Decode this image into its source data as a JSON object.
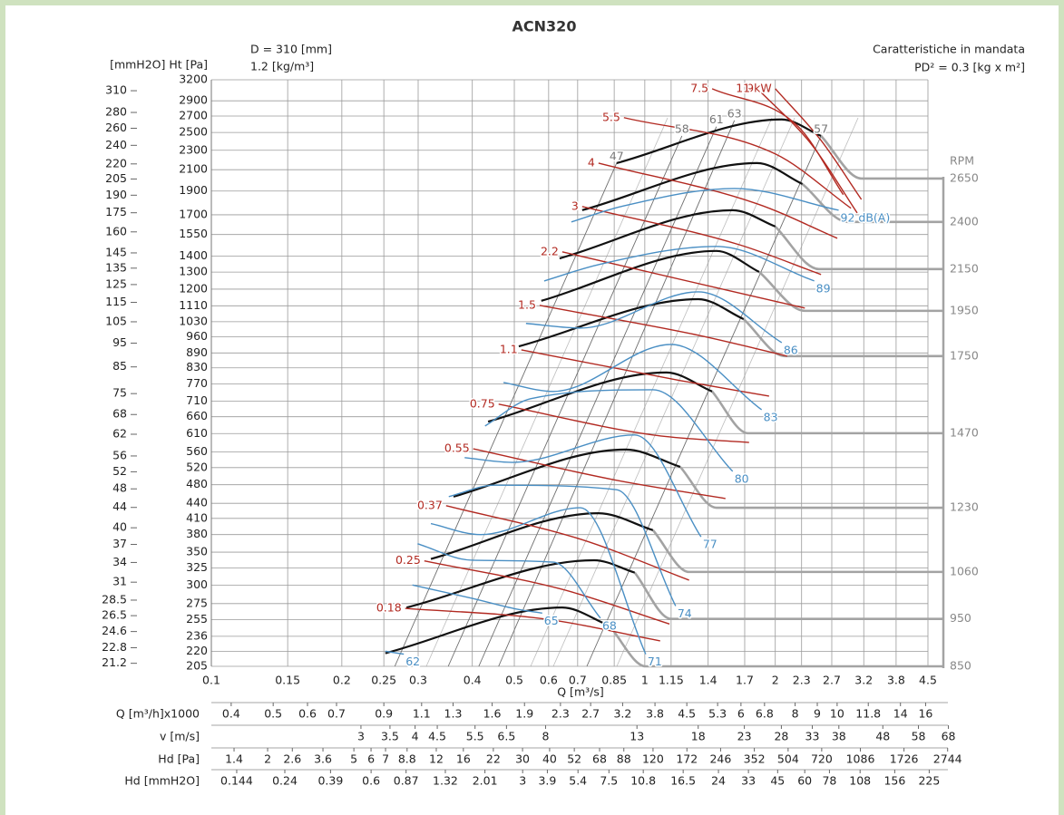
{
  "chart_data": {
    "type": "line",
    "title": "ACN320",
    "diameter_label": "D = 310 [mm]",
    "density_label": "1.2 [kg/m³]",
    "subtitle": "Caratteristiche in mandata",
    "inertia_label": "PD² = 0.3 [kg x m²]",
    "y_label": "[mmH2O] Ht [Pa]",
    "x_label": "Q [m³/s]",
    "rpm_label": "RPM",
    "log_scale": true,
    "grid": true,
    "xlim": [
      0.1,
      4.5
    ],
    "xticks": [
      0.1,
      0.15,
      0.2,
      0.25,
      0.3,
      0.4,
      0.5,
      0.6,
      0.7,
      0.85,
      1,
      1.15,
      1.4,
      1.7,
      2,
      2.3,
      2.7,
      3.2,
      3.8,
      4.5
    ],
    "ylim": [
      205,
      3200
    ],
    "yticks": [
      205,
      220,
      236,
      255,
      275,
      300,
      325,
      350,
      380,
      410,
      440,
      480,
      520,
      560,
      610,
      660,
      710,
      770,
      830,
      890,
      960,
      1030,
      1110,
      1200,
      1300,
      1400,
      1550,
      1700,
      1900,
      2100,
      2300,
      2500,
      2700,
      2900,
      3200
    ],
    "y2lim": [
      20.9,
      326.3
    ],
    "y2ticks": [
      21.2,
      22.8,
      24.6,
      26.5,
      28.5,
      31,
      34,
      37,
      40,
      44,
      48,
      52,
      56,
      62,
      68,
      75,
      85,
      95,
      105,
      115,
      125,
      135,
      145,
      160,
      175,
      190,
      205,
      220,
      240,
      260,
      280,
      310
    ],
    "series": [
      {
        "name": "850",
        "color": "#111111",
        "x": [
          0.252,
          0.645,
          0.828
        ],
        "values": [
          218,
          270,
          248
        ],
        "extension": {
          "color": "#a3a3a3",
          "x": [
            0.828,
            1.005,
            4.88
          ],
          "values": [
            248,
            205,
            205
          ]
        }
      },
      {
        "name": "950",
        "color": "#111111",
        "x": [
          0.282,
          0.764,
          0.948
        ],
        "values": [
          270,
          337,
          318
        ],
        "extension": {
          "color": "#a3a3a3",
          "x": [
            0.948,
            1.15,
            4.88
          ],
          "values": [
            318,
            256,
            256
          ]
        }
      },
      {
        "name": "1060",
        "color": "#111111",
        "x": [
          0.321,
          0.782,
          1.044
        ],
        "values": [
          339,
          420,
          388
        ],
        "extension": {
          "color": "#a3a3a3",
          "x": [
            1.044,
            1.265,
            4.88
          ],
          "values": [
            388,
            319,
            319
          ]
        }
      },
      {
        "name": "1230",
        "color": "#111111",
        "x": [
          0.362,
          0.904,
          1.207
        ],
        "values": [
          454,
          566,
          522
        ],
        "extension": {
          "color": "#a3a3a3",
          "x": [
            1.207,
            1.463,
            4.88
          ],
          "values": [
            522,
            431,
            431
          ]
        }
      },
      {
        "name": "1470",
        "color": "#111111",
        "x": [
          0.435,
          1.122,
          1.43
        ],
        "values": [
          645,
          812,
          743
        ],
        "extension": {
          "color": "#a3a3a3",
          "x": [
            1.43,
            1.73,
            4.88
          ],
          "values": [
            743,
            611,
            611
          ]
        }
      },
      {
        "name": "1750",
        "color": "#111111",
        "x": [
          0.512,
          1.329,
          1.69
        ],
        "values": [
          918,
          1145,
          1043
        ],
        "extension": {
          "color": "#a3a3a3",
          "x": [
            1.69,
            2.1,
            4.88
          ],
          "values": [
            1043,
            877,
            877
          ]
        }
      },
      {
        "name": "1950",
        "color": "#111111",
        "x": [
          0.577,
          1.463,
          1.835
        ],
        "values": [
          1136,
          1435,
          1301
        ],
        "extension": {
          "color": "#a3a3a3",
          "x": [
            1.835,
            2.34,
            4.88
          ],
          "values": [
            1301,
            1084,
            1084
          ]
        }
      },
      {
        "name": "2150",
        "color": "#111111",
        "x": [
          0.636,
          1.596,
          2.0
        ],
        "values": [
          1386,
          1737,
          1609
        ],
        "extension": {
          "color": "#a3a3a3",
          "x": [
            2.0,
            2.52,
            4.88
          ],
          "values": [
            1609,
            1318,
            1318
          ]
        }
      },
      {
        "name": "2400",
        "color": "#111111",
        "x": [
          0.717,
          1.816,
          2.31
        ],
        "values": [
          1737,
          2166,
          1964
        ],
        "extension": {
          "color": "#a3a3a3",
          "x": [
            2.31,
            2.94,
            4.88
          ],
          "values": [
            1964,
            1644,
            1644
          ]
        }
      },
      {
        "name": "2650",
        "color": "#111111",
        "x": [
          0.861,
          2.07,
          2.55
        ],
        "values": [
          2166,
          2657,
          2460
        ],
        "extension": {
          "color": "#a3a3a3",
          "x": [
            2.55,
            3.16,
            4.88
          ],
          "values": [
            2460,
            2015,
            2015
          ]
        }
      }
    ],
    "power_curves": [
      {
        "name": "0.18",
        "color": "#b22a22",
        "x": [
          0.28,
          0.586,
          1.085
        ],
        "values": [
          269,
          256,
          231
        ]
      },
      {
        "name": "0.25",
        "color": "#b22a22",
        "x": [
          0.31,
          0.645,
          1.14
        ],
        "values": [
          336,
          294,
          250
        ]
      },
      {
        "name": "0.37",
        "color": "#b22a22",
        "x": [
          0.348,
          0.71,
          1.265
        ],
        "values": [
          435,
          372,
          307
        ]
      },
      {
        "name": "0.55",
        "color": "#b22a22",
        "x": [
          0.402,
          0.861,
          1.535
        ],
        "values": [
          568,
          490,
          450
        ]
      },
      {
        "name": "0.75",
        "color": "#b22a22",
        "x": [
          0.46,
          1.044,
          1.74
        ],
        "values": [
          700,
          606,
          585
        ]
      },
      {
        "name": "1.1",
        "color": "#b22a22",
        "x": [
          0.519,
          1.207,
          1.935
        ],
        "values": [
          903,
          782,
          727
        ]
      },
      {
        "name": "1.5",
        "color": "#b22a22",
        "x": [
          0.572,
          1.329,
          2.13
        ],
        "values": [
          1112,
          967,
          877
        ]
      },
      {
        "name": "2.2",
        "color": "#b22a22",
        "x": [
          0.645,
          1.535,
          2.34
        ],
        "values": [
          1429,
          1196,
          1098
        ]
      },
      {
        "name": "3",
        "color": "#b22a22",
        "x": [
          0.717,
          1.65,
          2.55
        ],
        "values": [
          1767,
          1478,
          1285
        ]
      },
      {
        "name": "4",
        "color": "#b22a22",
        "x": [
          0.782,
          1.816,
          2.78
        ],
        "values": [
          2166,
          1790,
          1523
        ]
      },
      {
        "name": "5.5",
        "color": "#b22a22",
        "x": [
          0.895,
          2.0,
          2.99
        ],
        "values": [
          2680,
          2261,
          1753
        ]
      },
      {
        "name": "7.5",
        "color": "#b22a22",
        "x": [
          1.43,
          2.26,
          2.87
        ],
        "values": [
          3069,
          2569,
          1868
        ]
      },
      {
        "name": "9",
        "color": "#b22a22",
        "x": [
          1.82,
          2.43,
          3.09
        ],
        "values": [
          3069,
          2358,
          1715
        ]
      },
      {
        "name": "11 kW",
        "color": "#b22a22",
        "x": [
          2.0,
          2.55,
          3.16
        ],
        "values": [
          3069,
          2409,
          1827
        ]
      }
    ],
    "noise_curves": [
      {
        "name": "62",
        "color": "#4a8fc4",
        "x": [
          0.252,
          0.278
        ],
        "values": [
          220,
          217
        ]
      },
      {
        "name": "65",
        "color": "#4a8fc4",
        "x": [
          0.291,
          0.399,
          0.507,
          0.58
        ],
        "values": [
          300,
          282,
          268,
          263
        ]
      },
      {
        "name": "68",
        "color": "#4a8fc4",
        "x": [
          0.299,
          0.399,
          0.615,
          0.79
        ],
        "values": [
          364,
          337,
          334,
          257
        ]
      },
      {
        "name": "71",
        "color": "#4a8fc4",
        "x": [
          0.321,
          0.418,
          0.71,
          1.005
        ],
        "values": [
          400,
          380,
          431,
          217
        ]
      },
      {
        "name": "74",
        "color": "#4a8fc4",
        "x": [
          0.353,
          0.45,
          0.861,
          1.178
        ],
        "values": [
          454,
          479,
          469,
          272
        ]
      },
      {
        "name": "77",
        "color": "#4a8fc4",
        "x": [
          0.384,
          0.495,
          0.948,
          1.348
        ],
        "values": [
          545,
          533,
          606,
          376
        ]
      },
      {
        "name": "80",
        "color": "#4a8fc4",
        "x": [
          0.428,
          0.545,
          1.044,
          1.595
        ],
        "values": [
          632,
          718,
          749,
          511
        ]
      },
      {
        "name": "83",
        "color": "#4a8fc4",
        "x": [
          0.472,
          0.615,
          1.15,
          1.86
        ],
        "values": [
          775,
          743,
          926,
          682
        ]
      },
      {
        "name": "86",
        "color": "#4a8fc4",
        "x": [
          0.532,
          0.71,
          1.329,
          2.07
        ],
        "values": [
          1022,
          1000,
          1185,
          934
        ]
      },
      {
        "name": "89",
        "color": "#4a8fc4",
        "x": [
          0.586,
          0.782,
          1.463,
          2.46
        ],
        "values": [
          1247,
          1346,
          1466,
          1247
        ]
      },
      {
        "name": "92 dB(A)",
        "color": "#4a8fc4",
        "x": [
          0.677,
          0.882,
          1.61,
          2.8
        ],
        "values": [
          1644,
          1767,
          1923,
          1737
        ]
      }
    ],
    "efficiency_lines": [
      {
        "name": "47",
        "color": "#6e6e6e",
        "x": [
          0.265,
          0.861
        ],
        "values": [
          205,
          2166
        ]
      },
      {
        "name": "58",
        "color": "#6e6e6e",
        "x": [
          0.352,
          1.218
        ],
        "values": [
          205,
          2460
        ]
      },
      {
        "name": "61",
        "color": "#6e6e6e",
        "x": [
          0.414,
          1.463
        ],
        "values": [
          205,
          2569
        ]
      },
      {
        "name": "63",
        "color": "#6e6e6e",
        "x": [
          0.46,
          1.61
        ],
        "values": [
          205,
          2645
        ]
      },
      {
        "name": "57",
        "color": "#6e6e6e",
        "x": [
          0.735,
          2.55
        ],
        "values": [
          205,
          2460
        ]
      }
    ],
    "scales": [
      {
        "label": "Q [m³/h]x1000",
        "lim": [
          0.36,
          16.2
        ],
        "ticks": [
          0.4,
          0.5,
          0.6,
          0.7,
          0.9,
          1.1,
          1.3,
          1.6,
          1.9,
          2.3,
          2.7,
          3.2,
          3.8,
          4.5,
          5.3,
          6,
          6.8,
          8,
          9,
          10,
          11.8,
          14,
          16
        ]
      },
      {
        "label": "v [m/s]",
        "lim": [
          1.355,
          61.0
        ],
        "ticks": [
          3,
          3.5,
          4,
          4.5,
          5.5,
          6.5,
          8,
          13,
          18,
          23,
          28,
          33,
          38,
          48,
          58,
          68
        ]
      },
      {
        "label": "Hd [Pa]",
        "lim": [
          1.1,
          2226
        ],
        "ticks": [
          1.4,
          2,
          2.6,
          3.6,
          5,
          6,
          7,
          8.8,
          12,
          16,
          22,
          30,
          40,
          52,
          68,
          88,
          120,
          172,
          246,
          352,
          504,
          720,
          1086,
          1726,
          2744
        ]
      },
      {
        "label": "Hd [mmH2O]",
        "lim": [
          0.11,
          222
        ],
        "ticks": [
          0.144,
          0.24,
          0.39,
          0.6,
          0.87,
          1.32,
          2.01,
          3,
          3.9,
          5.4,
          7.5,
          10.8,
          16.5,
          24,
          33,
          45,
          60,
          78,
          108,
          156,
          225
        ]
      }
    ]
  }
}
